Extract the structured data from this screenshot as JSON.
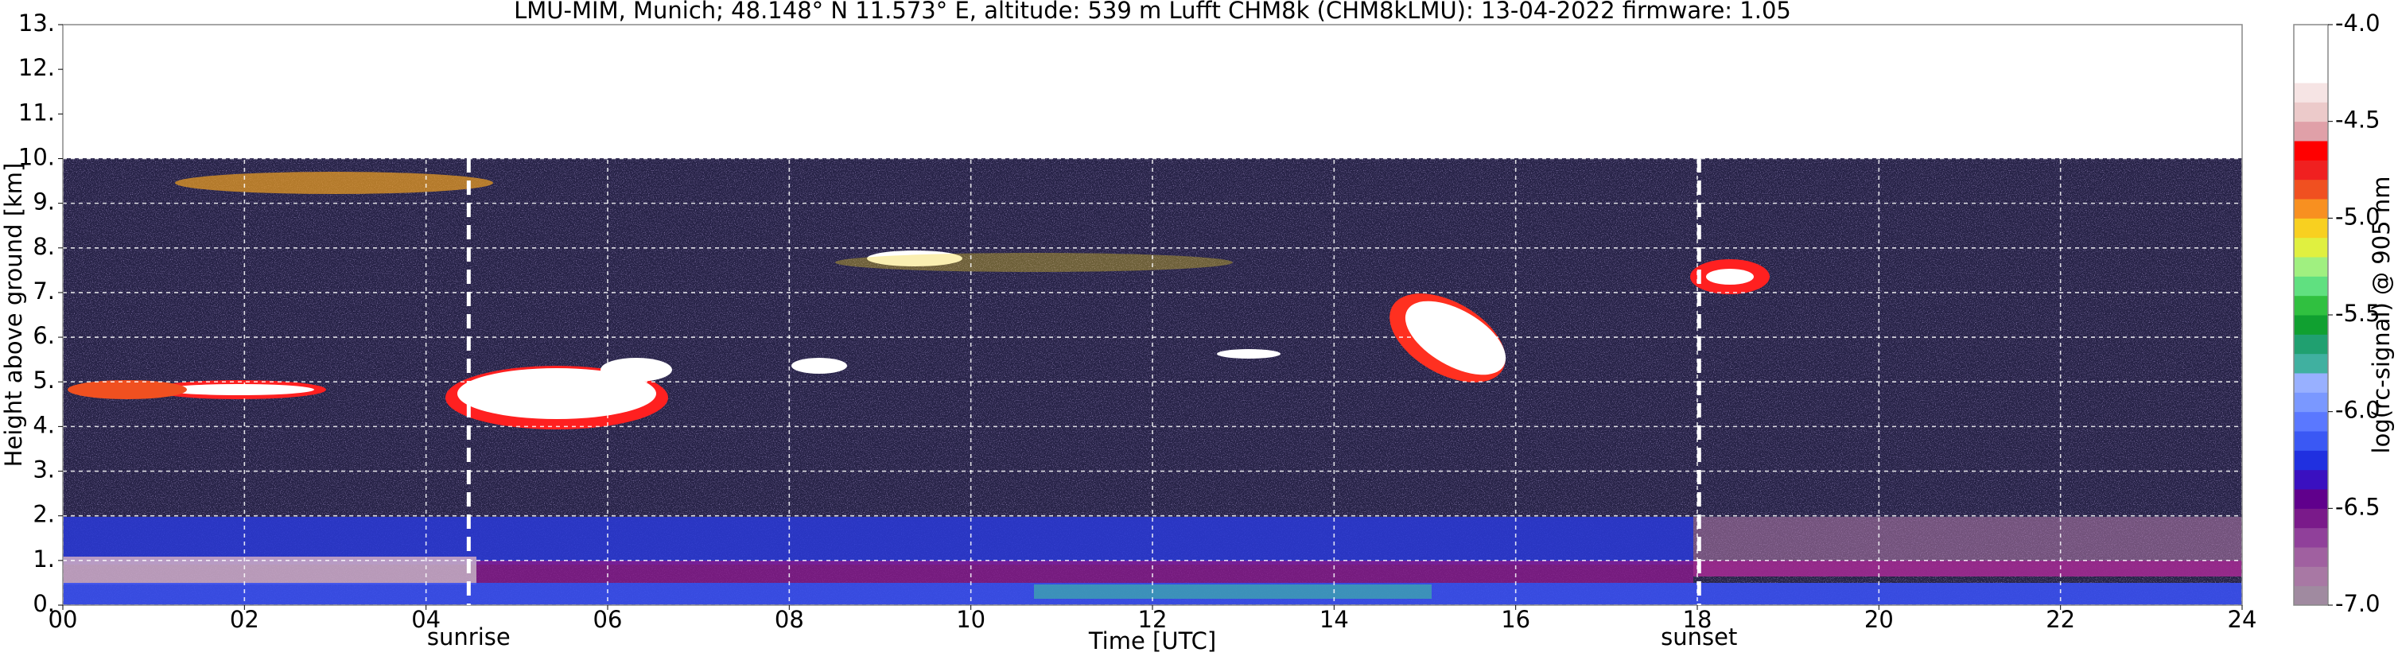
{
  "chart_data": {
    "type": "heatmap",
    "title": "LMU-MIM, Munich; 48.148° N 11.573° E, altitude: 539 m    Lufft CHM8k (CHM8kLMU): 13-04-2022    firmware: 1.05",
    "x_label": "Time [UTC]",
    "y_label": "Height above ground [km]",
    "xlim": [
      0,
      24
    ],
    "xticks": [
      {
        "value": 0,
        "label": "00"
      },
      {
        "value": 2,
        "label": "02"
      },
      {
        "value": 4,
        "label": "04"
      },
      {
        "value": 6,
        "label": "06"
      },
      {
        "value": 8,
        "label": "08"
      },
      10,
      12,
      14,
      16,
      18,
      20,
      22,
      24
    ],
    "ylim": [
      0,
      13
    ],
    "yticks": [
      {
        "value": 0,
        "label": "0."
      },
      {
        "value": 1,
        "label": "1."
      },
      {
        "value": 2,
        "label": "2."
      },
      {
        "value": 3,
        "label": "3."
      },
      {
        "value": 4,
        "label": "4."
      },
      {
        "value": 5,
        "label": "5."
      },
      {
        "value": 6,
        "label": "6."
      },
      {
        "value": 7,
        "label": "7."
      },
      {
        "value": 8,
        "label": "8."
      },
      {
        "value": 9,
        "label": "9."
      },
      {
        "value": 10,
        "label": "10."
      },
      {
        "value": 11,
        "label": "11."
      },
      {
        "value": 12,
        "label": "12."
      },
      {
        "value": 13,
        "label": "13."
      }
    ],
    "grid": true,
    "annotations": [
      {
        "text": "sunrise",
        "x": 4.47
      },
      {
        "text": "sunset",
        "x": 18.02
      }
    ],
    "colorbar": {
      "label": "log(rc-signal) @ 905 nm",
      "lim": [
        -7,
        -4
      ],
      "ticks": [
        {
          "value": -7,
          "label": "-7.0"
        },
        -6.5,
        {
          "value": -6,
          "label": "-6.0"
        },
        -5.5,
        {
          "value": -5,
          "label": "-5.0"
        },
        -4.5,
        {
          "value": -4,
          "label": "-4.0"
        }
      ],
      "colors": [
        "#a08aa0",
        "#a878a4",
        "#a060a0",
        "#90409a",
        "#7a1a8a",
        "#60008c",
        "#3a10c0",
        "#2030e0",
        "#3a58f4",
        "#5a78ff",
        "#7a98ff",
        "#98b0ff",
        "#40b0a0",
        "#20a070",
        "#10a030",
        "#30c040",
        "#60e080",
        "#a0f080",
        "#e0f040",
        "#f8d020",
        "#f89020",
        "#f05020",
        "#f02020",
        "#ff0000",
        "#e0a0a8",
        "#eccaca",
        "#f6e4e4",
        "#ffffff",
        "#ffffff",
        "#ffffff"
      ]
    }
  }
}
